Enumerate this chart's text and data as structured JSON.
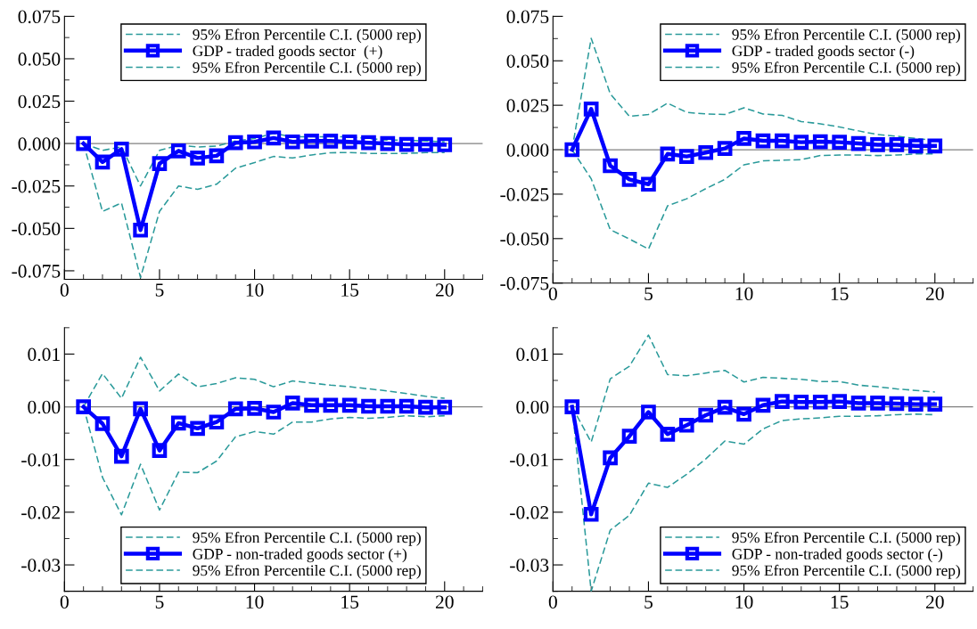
{
  "chart_data": [
    {
      "type": "line",
      "x": [
        1,
        2,
        3,
        4,
        5,
        6,
        7,
        8,
        9,
        10,
        11,
        12,
        13,
        14,
        15,
        16,
        17,
        18,
        19,
        20
      ],
      "xlim": [
        0,
        22
      ],
      "xticks": [
        0,
        5,
        10,
        15,
        20
      ],
      "ylim": [
        -0.08,
        0.075
      ],
      "yticks": [
        {
          "value": -0.075,
          "label": "-0.075"
        },
        {
          "value": -0.05,
          "label": "-0.050"
        },
        {
          "value": -0.025,
          "label": "-0.025"
        },
        {
          "value": 0,
          "label": "0.000"
        },
        {
          "value": 0.025,
          "label": "0.025"
        },
        {
          "value": 0.05,
          "label": "0.050"
        },
        {
          "value": 0.075,
          "label": "0.075"
        }
      ],
      "legend": "top",
      "grid": false,
      "ref_lines": [
        {
          "axis": "y",
          "value": 0,
          "color": "#808080"
        }
      ],
      "series": [
        {
          "name": "95% Efron Percentile C.I. (5000 rep)",
          "color": "#2a9a9a",
          "line_style": "dashed",
          "marker": "none",
          "values": [
            0,
            -0.004,
            -0.002,
            -0.025,
            -0.004,
            -0.001,
            -0.002,
            -0.0015,
            0.0015,
            0.003,
            0.006,
            0.004,
            0.004,
            0.004,
            0.004,
            0.003,
            0.002,
            0.002,
            0.0015,
            0.001
          ]
        },
        {
          "name": "GDP - traded goods sector  (+)",
          "color": "#0000ff",
          "line_style": "solid",
          "marker": "square",
          "values": [
            0,
            -0.0109,
            -0.0033,
            -0.051,
            -0.0118,
            -0.0043,
            -0.0085,
            -0.0072,
            0.0005,
            0.001,
            0.0033,
            0.001,
            0.0015,
            0.0015,
            0.001,
            0.0005,
            0,
            -0.0005,
            -0.0005,
            -0.0007
          ]
        },
        {
          "name": "95% Efron Percentile C.I. (5000 rep)",
          "color": "#2a9a9a",
          "line_style": "dashed",
          "marker": "none",
          "values": [
            0,
            -0.04,
            -0.035,
            -0.079,
            -0.04,
            -0.025,
            -0.027,
            -0.024,
            -0.0145,
            -0.0112,
            -0.0076,
            -0.0085,
            -0.0067,
            -0.0054,
            -0.0053,
            -0.0058,
            -0.0058,
            -0.0058,
            -0.0053,
            -0.0053
          ]
        }
      ]
    },
    {
      "type": "line",
      "x": [
        1,
        2,
        3,
        4,
        5,
        6,
        7,
        8,
        9,
        10,
        11,
        12,
        13,
        14,
        15,
        16,
        17,
        18,
        19,
        20
      ],
      "xlim": [
        0,
        22
      ],
      "xticks": [
        0,
        5,
        10,
        15,
        20
      ],
      "ylim": [
        -0.075,
        0.075
      ],
      "yticks": [
        {
          "value": -0.075,
          "label": "-0.075"
        },
        {
          "value": -0.05,
          "label": "-0.050"
        },
        {
          "value": -0.025,
          "label": "-0.025"
        },
        {
          "value": 0,
          "label": "0.000"
        },
        {
          "value": 0.025,
          "label": "0.025"
        },
        {
          "value": 0.05,
          "label": "0.050"
        },
        {
          "value": 0.075,
          "label": "0.075"
        }
      ],
      "legend": "top right",
      "grid": false,
      "ref_lines": [
        {
          "axis": "y",
          "value": 0,
          "color": "#808080"
        }
      ],
      "series": [
        {
          "name": "95% Efron Percentile C.I. (5000 rep)",
          "color": "#2a9a9a",
          "line_style": "dashed",
          "marker": "none",
          "values": [
            0,
            0.0627,
            0.0314,
            0.0188,
            0.0198,
            0.0262,
            0.021,
            0.0201,
            0.0198,
            0.0236,
            0.0201,
            0.0193,
            0.0158,
            0.0146,
            0.0128,
            0.0106,
            0.0085,
            0.0076,
            0.0063,
            0.0052
          ]
        },
        {
          "name": "GDP - traded goods sector (-)",
          "color": "#0000ff",
          "line_style": "solid",
          "marker": "square",
          "values": [
            0,
            0.0229,
            -0.009,
            -0.0167,
            -0.0194,
            -0.0024,
            -0.0038,
            -0.0016,
            0.0007,
            0.0063,
            0.005,
            0.005,
            0.0042,
            0.0045,
            0.0042,
            0.0035,
            0.0028,
            0.0028,
            0.0021,
            0.0021
          ]
        },
        {
          "name": "95% Efron Percentile C.I. (5000 rep)",
          "color": "#2a9a9a",
          "line_style": "dashed",
          "marker": "none",
          "values": [
            0,
            -0.0163,
            -0.045,
            -0.0502,
            -0.0559,
            -0.0316,
            -0.0276,
            -0.0219,
            -0.0167,
            -0.0085,
            -0.0063,
            -0.0059,
            -0.0056,
            -0.0033,
            -0.003,
            -0.003,
            -0.0033,
            -0.003,
            -0.0024,
            -0.0024
          ]
        }
      ]
    },
    {
      "type": "line",
      "x": [
        1,
        2,
        3,
        4,
        5,
        6,
        7,
        8,
        9,
        10,
        11,
        12,
        13,
        14,
        15,
        16,
        17,
        18,
        19,
        20
      ],
      "xlim": [
        0,
        22
      ],
      "xticks": [
        0,
        5,
        10,
        15,
        20
      ],
      "ylim": [
        -0.035,
        0.015
      ],
      "yticks": [
        {
          "value": -0.03,
          "label": "-0.03"
        },
        {
          "value": -0.02,
          "label": "-0.02"
        },
        {
          "value": -0.01,
          "label": "-0.01"
        },
        {
          "value": 0,
          "label": "0.00"
        },
        {
          "value": 0.01,
          "label": "0.01"
        }
      ],
      "legend": "bottom",
      "grid": false,
      "ref_lines": [
        {
          "axis": "y",
          "value": 0,
          "color": "#808080"
        }
      ],
      "series": [
        {
          "name": "95% Efron Percentile C.I. (5000 rep)",
          "color": "#2a9a9a",
          "line_style": "dashed",
          "marker": "none",
          "values": [
            0,
            0.0063,
            0.0016,
            0.0094,
            0.003,
            0.0062,
            0.0038,
            0.0044,
            0.0055,
            0.0052,
            0.0038,
            0.0049,
            0.0045,
            0.0041,
            0.0038,
            0.0034,
            0.003,
            0.0025,
            0.002,
            0.0016
          ]
        },
        {
          "name": "GDP - non-traded goods sector (+)",
          "color": "#0000ff",
          "line_style": "solid",
          "marker": "square",
          "values": [
            0,
            -0.0032,
            -0.0094,
            -0.0004,
            -0.0083,
            -0.0031,
            -0.0041,
            -0.0029,
            -0.0004,
            -0.0003,
            -0.001,
            0.0007,
            0.0003,
            0.0003,
            0.0003,
            0.0001,
            0.0001,
            0.0001,
            -0.0001,
            -0.0001
          ]
        },
        {
          "name": "95% Efron Percentile C.I. (5000 rep)",
          "color": "#2a9a9a",
          "line_style": "dashed",
          "marker": "none",
          "values": [
            0,
            -0.0134,
            -0.0205,
            -0.0109,
            -0.0196,
            -0.0124,
            -0.0125,
            -0.0103,
            -0.0057,
            -0.0047,
            -0.0052,
            -0.0029,
            -0.0029,
            -0.0023,
            -0.002,
            -0.0022,
            -0.002,
            -0.0017,
            -0.0019,
            -0.0017
          ]
        }
      ]
    },
    {
      "type": "line",
      "x": [
        1,
        2,
        3,
        4,
        5,
        6,
        7,
        8,
        9,
        10,
        11,
        12,
        13,
        14,
        15,
        16,
        17,
        18,
        19,
        20
      ],
      "xlim": [
        0,
        22
      ],
      "xticks": [
        0,
        5,
        10,
        15,
        20
      ],
      "ylim": [
        -0.035,
        0.015
      ],
      "yticks": [
        {
          "value": -0.03,
          "label": "-0.03"
        },
        {
          "value": -0.02,
          "label": "-0.02"
        },
        {
          "value": -0.01,
          "label": "-0.01"
        },
        {
          "value": 0,
          "label": "0.00"
        },
        {
          "value": 0.01,
          "label": "0.01"
        }
      ],
      "legend": "bottom right",
      "grid": false,
      "ref_lines": [
        {
          "axis": "y",
          "value": 0,
          "color": "#808080"
        }
      ],
      "series": [
        {
          "name": "95% Efron Percentile C.I. (5000 rep)",
          "color": "#2a9a9a",
          "line_style": "dashed",
          "marker": "none",
          "values": [
            0,
            -0.0067,
            0.0053,
            0.0077,
            0.0136,
            0.0061,
            0.0059,
            0.0064,
            0.0069,
            0.0047,
            0.0056,
            0.0054,
            0.0052,
            0.0048,
            0.0048,
            0.0041,
            0.0038,
            0.0034,
            0.0031,
            0.0028
          ]
        },
        {
          "name": "GDP - non-traded goods sector (-)",
          "color": "#0000ff",
          "line_style": "solid",
          "marker": "square",
          "values": [
            0,
            -0.0204,
            -0.0097,
            -0.0056,
            -0.001,
            -0.0052,
            -0.0035,
            -0.0016,
            -0.0001,
            -0.0014,
            0.0003,
            0.001,
            0.0009,
            0.0009,
            0.001,
            0.0007,
            0.0007,
            0.0006,
            0.0005,
            0.0005
          ]
        },
        {
          "name": "95% Efron Percentile C.I. (5000 rep)",
          "color": "#2a9a9a",
          "line_style": "dashed",
          "marker": "none",
          "values": [
            0,
            -0.035,
            -0.0234,
            -0.0206,
            -0.0145,
            -0.0153,
            -0.0128,
            -0.0099,
            -0.0065,
            -0.0071,
            -0.0042,
            -0.0026,
            -0.0023,
            -0.0021,
            -0.0018,
            -0.0018,
            -0.0017,
            -0.0015,
            -0.0014,
            -0.0015
          ]
        }
      ]
    }
  ]
}
